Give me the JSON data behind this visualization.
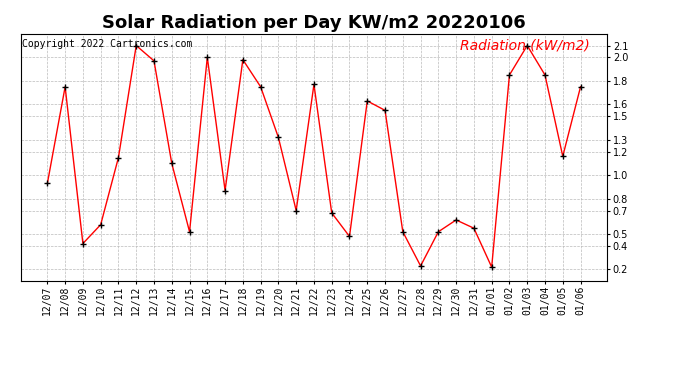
{
  "title": "Solar Radiation per Day KW/m2 20220106",
  "copyright": "Copyright 2022 Cartronics.com",
  "legend_label": "Radiation (kW/m2)",
  "dates": [
    "12/07",
    "12/08",
    "12/09",
    "12/10",
    "12/11",
    "12/12",
    "12/13",
    "12/14",
    "12/15",
    "12/16",
    "12/17",
    "12/18",
    "12/19",
    "12/20",
    "12/21",
    "12/22",
    "12/23",
    "12/24",
    "12/25",
    "12/26",
    "12/27",
    "12/28",
    "12/29",
    "12/30",
    "12/31",
    "01/01",
    "01/02",
    "01/03",
    "01/04",
    "01/05",
    "01/06"
  ],
  "values": [
    0.93,
    1.75,
    0.42,
    0.58,
    1.15,
    2.1,
    1.97,
    1.1,
    0.52,
    2.0,
    0.87,
    1.98,
    1.75,
    1.32,
    0.7,
    1.77,
    0.68,
    0.48,
    1.63,
    1.55,
    0.52,
    0.23,
    0.52,
    0.62,
    0.55,
    0.22,
    1.85,
    2.1,
    1.85,
    1.16,
    1.75
  ],
  "ylim": [
    0.1,
    2.2
  ],
  "yticks": [
    0.2,
    0.4,
    0.5,
    0.7,
    0.8,
    1.0,
    1.2,
    1.3,
    1.5,
    1.6,
    1.8,
    2.0,
    2.1
  ],
  "line_color": "red",
  "marker_color": "black",
  "grid_color": "#bbbbbb",
  "bg_color": "white",
  "title_fontsize": 13,
  "copyright_fontsize": 7,
  "legend_fontsize": 10,
  "tick_fontsize": 7
}
